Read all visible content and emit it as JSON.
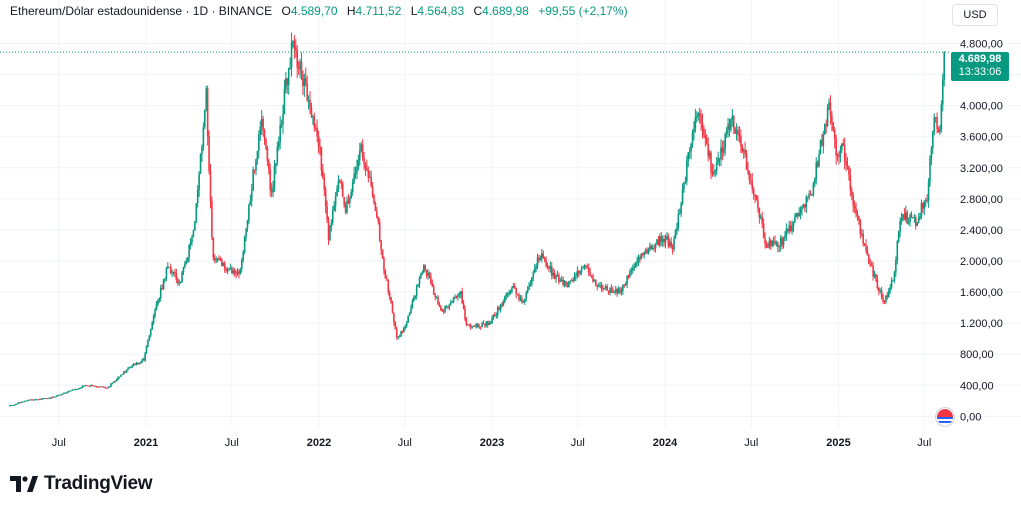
{
  "header": {
    "symbol": "Ethereum/Dólar estadounidense · 1D · BINANCE",
    "open_label": "O",
    "open": "4.589,70",
    "high_label": "H",
    "high": "4.711,52",
    "low_label": "L",
    "low": "4.564,83",
    "close_label": "C",
    "close": "4.689,98",
    "change": "+99,55 (+2,17%)"
  },
  "currency_button": "USD",
  "price_tag": {
    "price": "4.689,98",
    "countdown": "13:33:06"
  },
  "branding": {
    "name": "TradingView"
  },
  "colors": {
    "up": "#089981",
    "down": "#f23645",
    "grid": "#f0f3fa",
    "text": "#131722",
    "last_price_line": "#089981"
  },
  "chart_data": {
    "type": "candlestick",
    "title": "",
    "xlabel": "",
    "ylabel": "",
    "ylim": [
      -150,
      5000
    ],
    "y_ticks": [
      {
        "value": 0,
        "label": "0,00"
      },
      {
        "value": 400,
        "label": "400,00"
      },
      {
        "value": 800,
        "label": "800,00"
      },
      {
        "value": 1200,
        "label": "1.200,00"
      },
      {
        "value": 1600,
        "label": "1.600,00"
      },
      {
        "value": 2000,
        "label": "2.000,00"
      },
      {
        "value": 2400,
        "label": "2.400,00"
      },
      {
        "value": 2800,
        "label": "2.800,00"
      },
      {
        "value": 3200,
        "label": "3.200,00"
      },
      {
        "value": 3600,
        "label": "3.600,00"
      },
      {
        "value": 4000,
        "label": "4.000,00"
      },
      {
        "value": 4400,
        "label": "4.400,00"
      },
      {
        "value": 4800,
        "label": "4.800,00"
      }
    ],
    "x_ticks": [
      {
        "date": "2020-07-01",
        "label": "Jul",
        "bold": false
      },
      {
        "date": "2021-01-01",
        "label": "2021",
        "bold": true
      },
      {
        "date": "2021-07-01",
        "label": "Jul",
        "bold": false
      },
      {
        "date": "2022-01-01",
        "label": "2022",
        "bold": true
      },
      {
        "date": "2022-07-01",
        "label": "Jul",
        "bold": false
      },
      {
        "date": "2023-01-01",
        "label": "2023",
        "bold": true
      },
      {
        "date": "2023-07-01",
        "label": "Jul",
        "bold": false
      },
      {
        "date": "2024-01-01",
        "label": "2024",
        "bold": true
      },
      {
        "date": "2024-07-01",
        "label": "Jul",
        "bold": false
      },
      {
        "date": "2025-01-01",
        "label": "2025",
        "bold": true
      },
      {
        "date": "2025-07-01",
        "label": "Jul",
        "bold": false
      }
    ],
    "x_range": [
      "2020-03-20",
      "2025-08-20"
    ],
    "last_price": 4689.98,
    "price_path": [
      [
        "2020-03-20",
        130
      ],
      [
        "2020-05-01",
        210
      ],
      [
        "2020-06-15",
        235
      ],
      [
        "2020-07-25",
        320
      ],
      [
        "2020-09-01",
        400
      ],
      [
        "2020-10-15",
        370
      ],
      [
        "2020-11-25",
        600
      ],
      [
        "2020-12-31",
        740
      ],
      [
        "2021-01-20",
        1300
      ],
      [
        "2021-02-20",
        1950
      ],
      [
        "2021-03-15",
        1700
      ],
      [
        "2021-04-15",
        2400
      ],
      [
        "2021-05-11",
        4150
      ],
      [
        "2021-05-24",
        2100
      ],
      [
        "2021-06-20",
        1900
      ],
      [
        "2021-07-20",
        1800
      ],
      [
        "2021-08-20",
        3200
      ],
      [
        "2021-09-05",
        3900
      ],
      [
        "2021-09-25",
        2850
      ],
      [
        "2021-10-25",
        4200
      ],
      [
        "2021-11-10",
        4800
      ],
      [
        "2021-12-10",
        4100
      ],
      [
        "2022-01-05",
        3500
      ],
      [
        "2022-01-24",
        2300
      ],
      [
        "2022-02-15",
        3100
      ],
      [
        "2022-03-01",
        2650
      ],
      [
        "2022-04-03",
        3450
      ],
      [
        "2022-05-01",
        2800
      ],
      [
        "2022-05-20",
        1950
      ],
      [
        "2022-06-18",
        1000
      ],
      [
        "2022-07-05",
        1150
      ],
      [
        "2022-08-13",
        1950
      ],
      [
        "2022-09-20",
        1330
      ],
      [
        "2022-10-29",
        1620
      ],
      [
        "2022-11-10",
        1150
      ],
      [
        "2022-12-31",
        1200
      ],
      [
        "2023-02-15",
        1680
      ],
      [
        "2023-03-10",
        1450
      ],
      [
        "2023-04-15",
        2100
      ],
      [
        "2023-05-15",
        1800
      ],
      [
        "2023-06-15",
        1700
      ],
      [
        "2023-07-15",
        1950
      ],
      [
        "2023-08-17",
        1650
      ],
      [
        "2023-10-01",
        1600
      ],
      [
        "2023-11-10",
        2050
      ],
      [
        "2023-12-31",
        2300
      ],
      [
        "2024-01-22",
        2200
      ],
      [
        "2024-03-12",
        4000
      ],
      [
        "2024-04-15",
        3100
      ],
      [
        "2024-05-25",
        3850
      ],
      [
        "2024-07-05",
        3000
      ],
      [
        "2024-08-05",
        2200
      ],
      [
        "2024-09-06",
        2250
      ],
      [
        "2024-10-15",
        2650
      ],
      [
        "2024-11-08",
        2900
      ],
      [
        "2024-12-16",
        4050
      ],
      [
        "2024-12-31",
        3350
      ],
      [
        "2025-01-15",
        3450
      ],
      [
        "2025-02-05",
        2700
      ],
      [
        "2025-03-10",
        2000
      ],
      [
        "2025-04-09",
        1450
      ],
      [
        "2025-05-01",
        1800
      ],
      [
        "2025-05-15",
        2600
      ],
      [
        "2025-06-15",
        2500
      ],
      [
        "2025-07-10",
        2850
      ],
      [
        "2025-07-25",
        3850
      ],
      [
        "2025-08-05",
        3500
      ],
      [
        "2025-08-14",
        4689.98
      ]
    ]
  }
}
